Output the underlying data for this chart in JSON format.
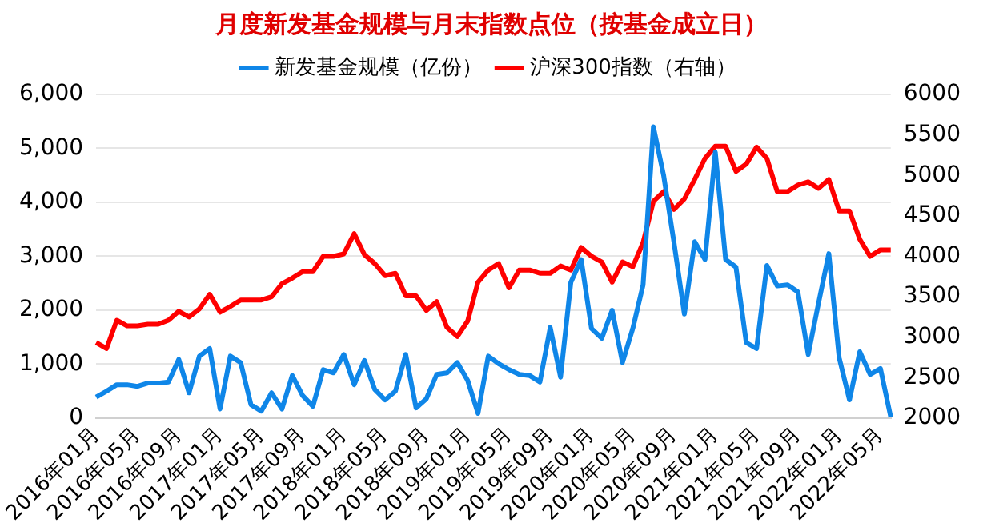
{
  "chart_data": {
    "type": "line",
    "title": "月度新发基金规模与月末指数点位（按基金成立日）",
    "categories": [
      "2016年01月",
      null,
      null,
      null,
      "2016年05月",
      null,
      null,
      null,
      "2016年09月",
      null,
      null,
      null,
      "2017年01月",
      null,
      null,
      null,
      "2017年05月",
      null,
      null,
      null,
      "2017年09月",
      null,
      null,
      null,
      "2018年01月",
      null,
      null,
      null,
      "2018年05月",
      null,
      null,
      null,
      "2018年09月",
      null,
      null,
      null,
      "2019年01月",
      null,
      null,
      null,
      "2019年05月",
      null,
      null,
      null,
      "2019年09月",
      null,
      null,
      null,
      "2020年01月",
      null,
      null,
      null,
      "2020年05月",
      null,
      null,
      null,
      "2020年09月",
      null,
      null,
      null,
      "2021年01月",
      null,
      null,
      null,
      "2021年05月",
      null,
      null,
      null,
      "2021年09月",
      null,
      null,
      null,
      "2022年01月",
      null,
      null,
      null,
      "2022年05月",
      null
    ],
    "series": [
      {
        "name": "新发基金规模（亿份）",
        "color": "#0f86e8",
        "values": [
          390,
          500,
          620,
          620,
          590,
          650,
          650,
          670,
          1090,
          470,
          1150,
          1290,
          170,
          1150,
          1030,
          250,
          130,
          470,
          170,
          790,
          420,
          220,
          900,
          840,
          1180,
          620,
          1070,
          530,
          340,
          500,
          1180,
          190,
          360,
          810,
          840,
          1030,
          700,
          90,
          1150,
          1010,
          900,
          810,
          790,
          670,
          1680,
          760,
          2520,
          2940,
          1660,
          1480,
          2000,
          1030,
          1660,
          2470,
          5400,
          4490,
          3250,
          1930,
          3270,
          2940,
          4930,
          2940,
          2800,
          1400,
          1290,
          2830,
          2450,
          2470,
          2340,
          1180,
          2130,
          3050,
          1120,
          340,
          1230,
          810,
          920,
          20
        ]
      },
      {
        "name": "沪深300指数（右轴）",
        "color": "#ff0000",
        "axis": "y2",
        "values": [
          2935,
          2860,
          3210,
          3140,
          3140,
          3160,
          3160,
          3210,
          3320,
          3250,
          3350,
          3530,
          3310,
          3380,
          3460,
          3460,
          3460,
          3500,
          3660,
          3730,
          3810,
          3810,
          4000,
          4000,
          4030,
          4280,
          4020,
          3910,
          3760,
          3790,
          3510,
          3510,
          3330,
          3440,
          3120,
          3010,
          3200,
          3680,
          3830,
          3910,
          3610,
          3830,
          3830,
          3790,
          3790,
          3880,
          3830,
          4110,
          4000,
          3930,
          3680,
          3930,
          3870,
          4170,
          4680,
          4800,
          4580,
          4710,
          4950,
          5210,
          5360,
          5360,
          5050,
          5140,
          5350,
          5210,
          4800,
          4800,
          4880,
          4920,
          4840,
          4950,
          4560,
          4560,
          4210,
          4000,
          4080,
          4080
        ]
      }
    ],
    "ylim": [
      0,
      6000
    ],
    "yticks": [
      {
        "value": 0,
        "label": "0"
      },
      {
        "value": 1000,
        "label": "1,000"
      },
      {
        "value": 2000,
        "label": "2,000"
      },
      {
        "value": 3000,
        "label": "3,000"
      },
      {
        "value": 4000,
        "label": "4,000"
      },
      {
        "value": 5000,
        "label": "5,000"
      },
      {
        "value": 6000,
        "label": "6,000"
      }
    ],
    "y2lim": [
      2000,
      6000
    ],
    "y2ticks": [
      2000,
      2500,
      3000,
      3500,
      4000,
      4500,
      5000,
      5500,
      6000
    ],
    "grid": "y",
    "legend": "top",
    "marker": "none",
    "line_style": "solid"
  }
}
